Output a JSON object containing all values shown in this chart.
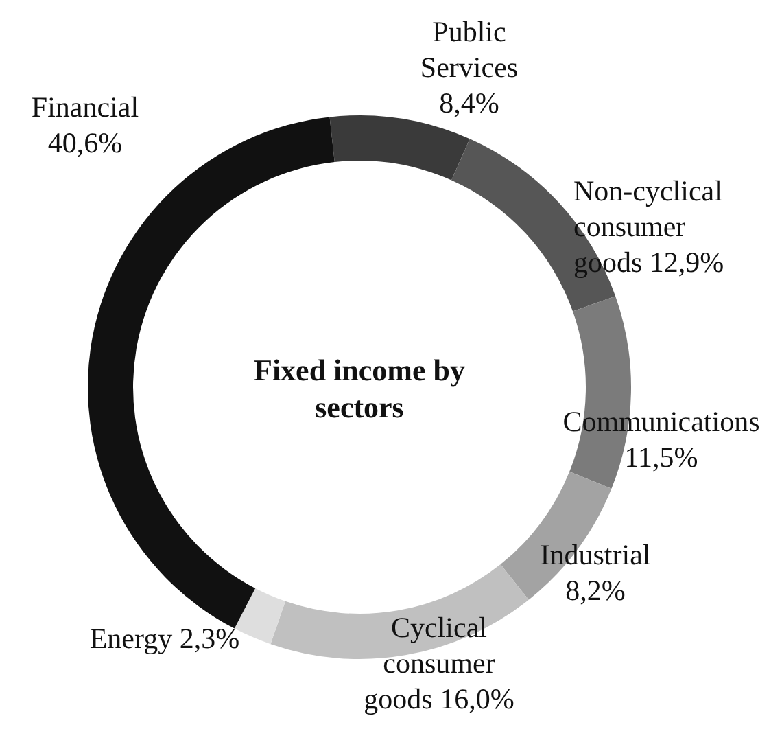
{
  "chart_data": {
    "type": "donut",
    "title": "Fixed income by sectors",
    "categories": [
      "Public Services",
      "Non-cyclical consumer goods",
      "Communications",
      "Industrial",
      "Cyclical consumer goods",
      "Energy",
      "Financial"
    ],
    "values": [
      8.4,
      12.9,
      11.5,
      8.2,
      16.0,
      2.3,
      40.6
    ],
    "value_labels": [
      "8,4%",
      "12,9%",
      "11,5%",
      "8,2%",
      "16,0%",
      "2,3%",
      "40,6%"
    ],
    "colors": [
      "#3a3a3a",
      "#565656",
      "#7b7b7b",
      "#a3a3a3",
      "#c0c0c0",
      "#dedede",
      "#111111"
    ]
  }
}
